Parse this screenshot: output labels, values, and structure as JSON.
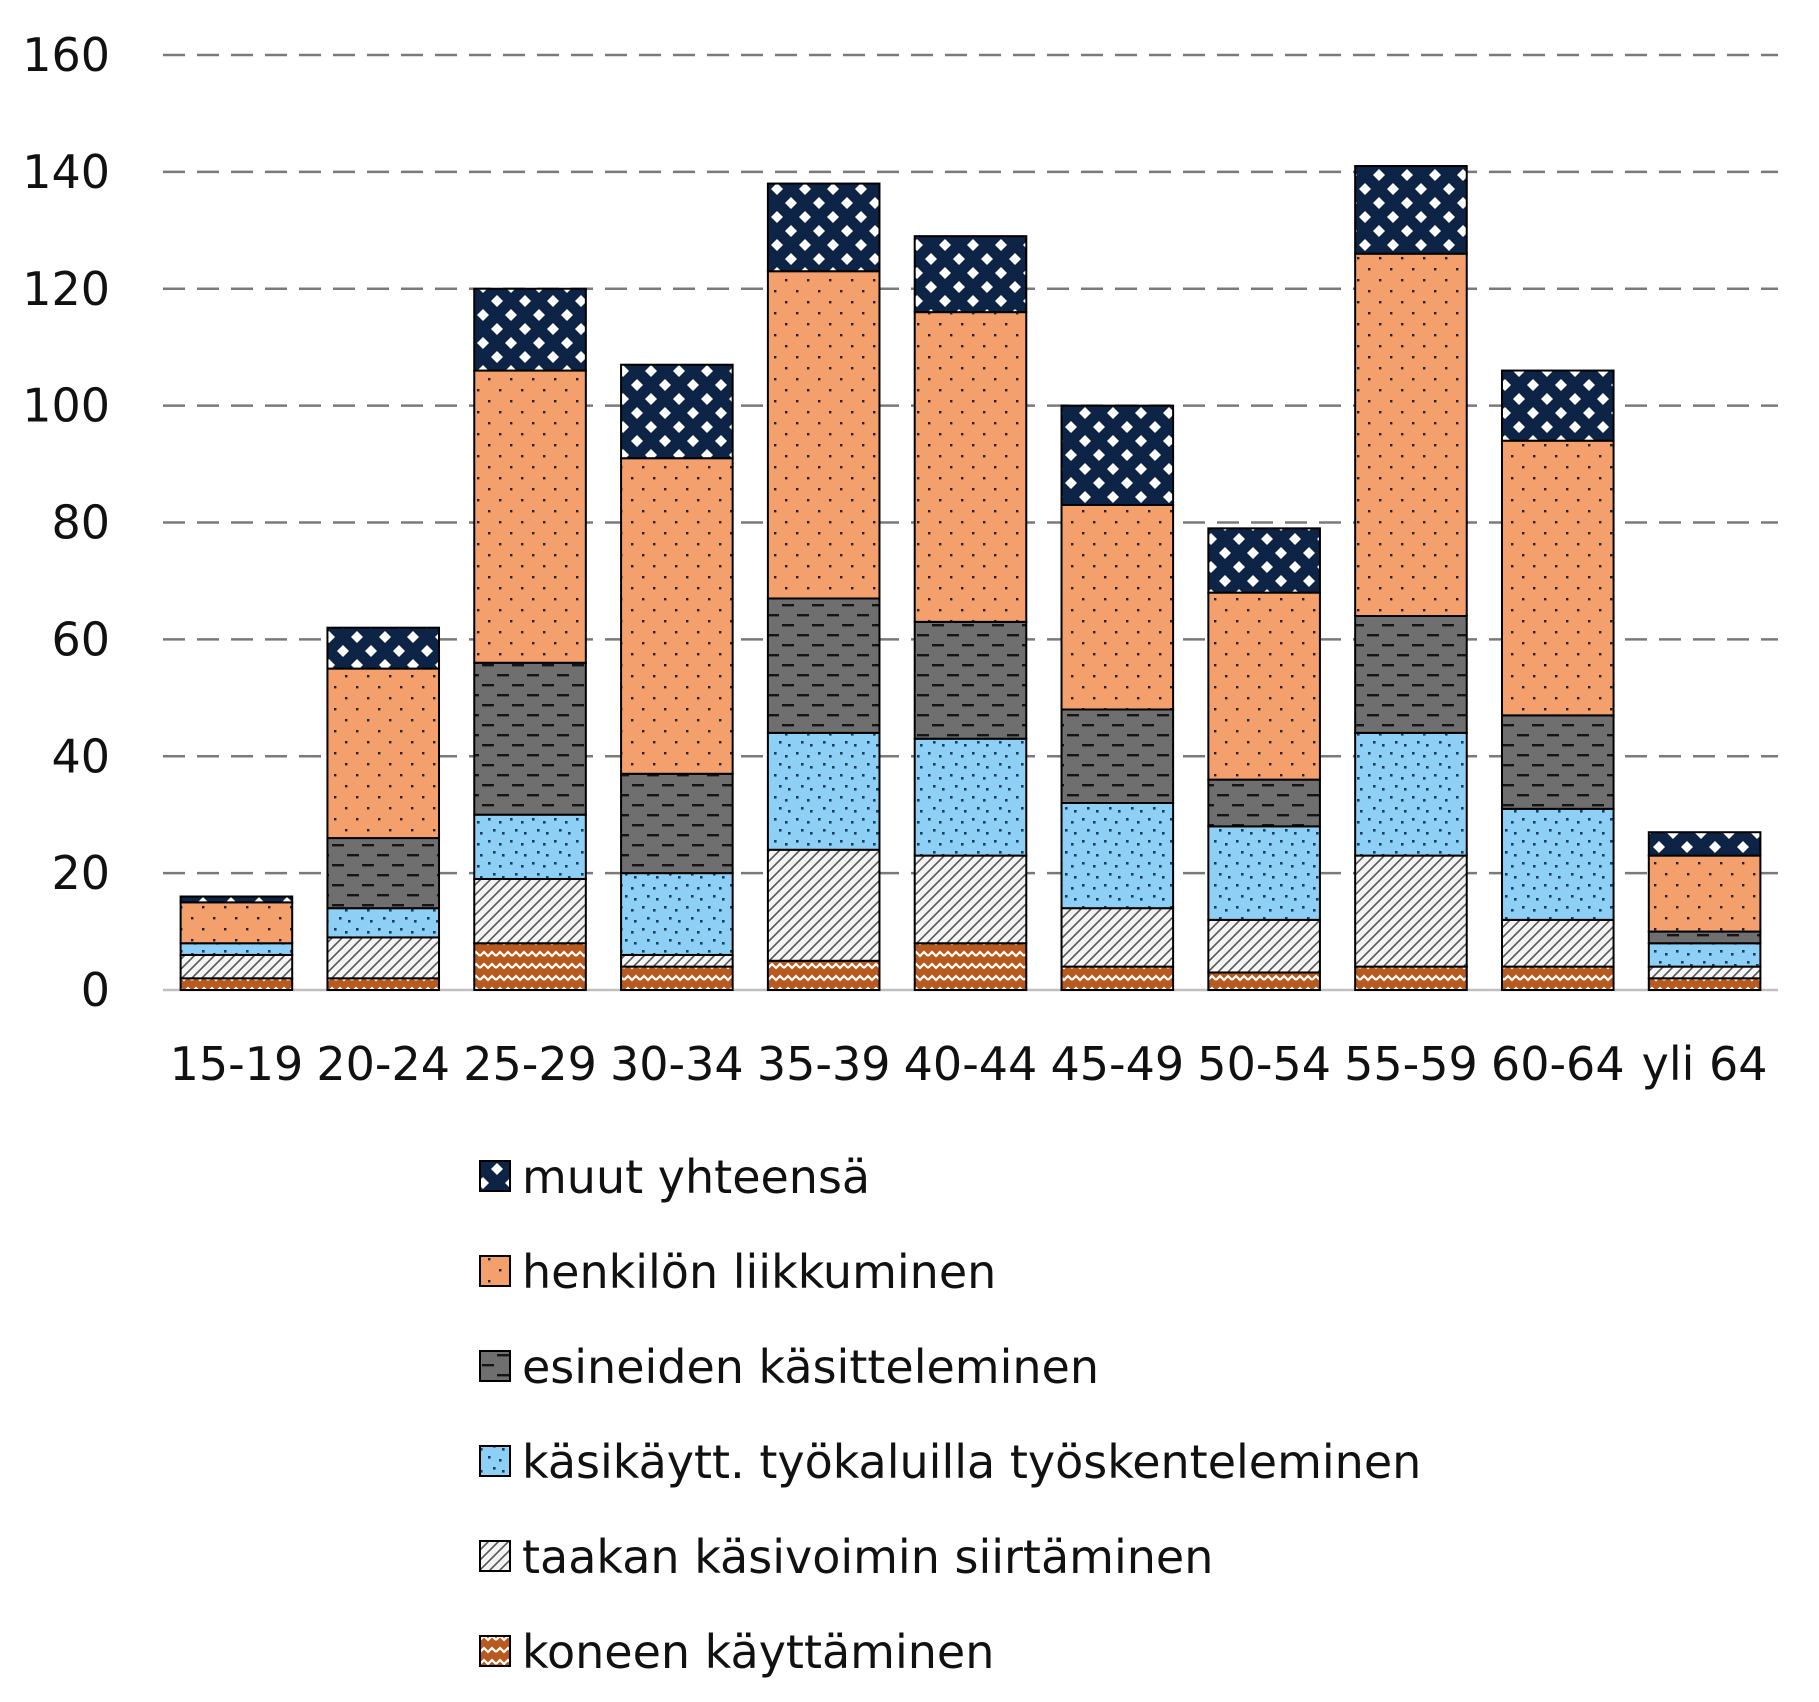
{
  "chart_data": {
    "type": "bar",
    "stacked": true,
    "title": "",
    "xlabel": "",
    "ylabel": "",
    "ylim": [
      0,
      160
    ],
    "yticks": [
      0,
      20,
      40,
      60,
      80,
      100,
      120,
      140,
      160
    ],
    "grid": true,
    "legend_position": "bottom",
    "categories": [
      "15-19",
      "20-24",
      "25-29",
      "30-34",
      "35-39",
      "40-44",
      "45-49",
      "50-54",
      "55-59",
      "60-64",
      "yli 64"
    ],
    "series": [
      {
        "name": "koneen käyttäminen",
        "color": "#b85a1e",
        "values": [
          2,
          2,
          8,
          4,
          5,
          8,
          4,
          3,
          4,
          4,
          2
        ]
      },
      {
        "name": "taakan käsivoimin siirtäminen",
        "color": "#f2f2f2",
        "values": [
          4,
          7,
          11,
          2,
          19,
          15,
          10,
          9,
          19,
          8,
          2
        ]
      },
      {
        "name": "käsikäytt. työkaluilla työskenteleminen",
        "color": "#8ecff5",
        "values": [
          2,
          5,
          11,
          14,
          20,
          20,
          18,
          16,
          21,
          19,
          4
        ]
      },
      {
        "name": "esineiden käsitteleminen",
        "color": "#6f6f6f",
        "values": [
          0,
          12,
          26,
          17,
          23,
          20,
          16,
          8,
          20,
          16,
          2
        ]
      },
      {
        "name": "henkilön liikkuminen",
        "color": "#f4a06c",
        "values": [
          7,
          29,
          50,
          54,
          56,
          53,
          35,
          32,
          62,
          47,
          13
        ]
      },
      {
        "name": "muut yhteensä",
        "color": "#0d2446",
        "values": [
          1,
          7,
          14,
          16,
          15,
          13,
          17,
          11,
          15,
          12,
          4
        ]
      }
    ]
  }
}
